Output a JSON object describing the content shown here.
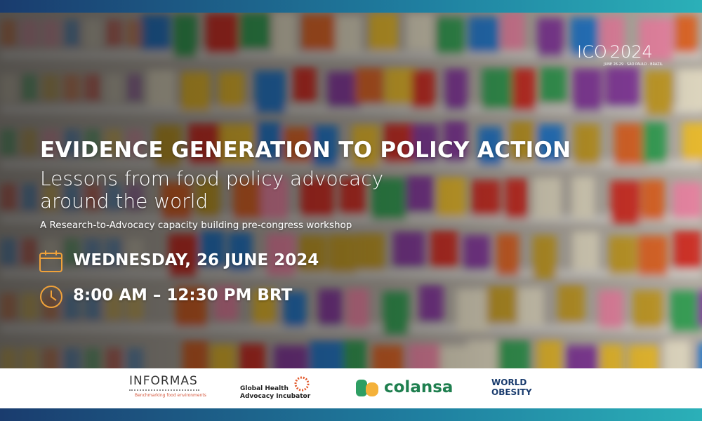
{
  "event_logo": {
    "name": "ICO",
    "year": "2024",
    "details": "JUNE 26-29 · SÃO PAULO · BRAZIL"
  },
  "headline": "EVIDENCE GENERATION TO POLICY ACTION",
  "subtitle_lines": [
    "Lessons from food policy advocacy",
    "around the world"
  ],
  "tagline": "A Research-to-Advocacy capacity building pre-congress workshop",
  "date": "WEDNESDAY, 26 JUNE 2024",
  "time": "8:00 AM – 12:30 PM BRT",
  "partners": [
    {
      "name": "INFORMAS",
      "tagline": "Benchmarking food environments"
    },
    {
      "name_lines": [
        "Global Health",
        "Advocacy Incubator"
      ]
    },
    {
      "name": "colansa"
    },
    {
      "name_lines": [
        "WORLD",
        "OBESITY"
      ]
    }
  ]
}
